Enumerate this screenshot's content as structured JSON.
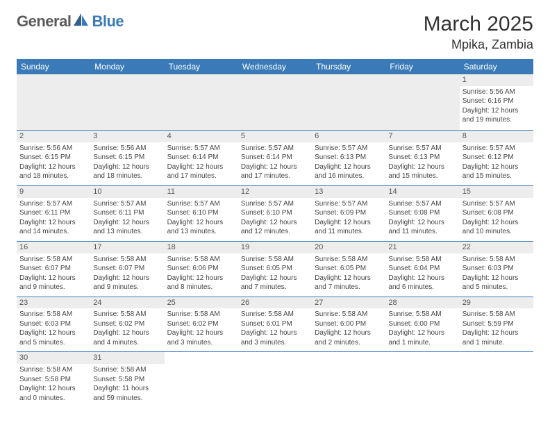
{
  "logo": {
    "part1": "General",
    "part2": "Blue"
  },
  "title": "March 2025",
  "subtitle": "Mpika, Zambia",
  "colors": {
    "header_bg": "#3a7ab8",
    "header_text": "#ffffff",
    "grid_line": "#3a7ab8",
    "daynum_bg": "#ededed",
    "body_text": "#444444",
    "logo_gray": "#5a5a5a",
    "logo_blue": "#3a7ab8",
    "page_bg": "#ffffff"
  },
  "typography": {
    "title_fontsize": 30,
    "subtitle_fontsize": 18,
    "header_fontsize": 12,
    "cell_fontsize": 10,
    "daynum_fontsize": 11,
    "font_family": "Arial"
  },
  "weekdays": [
    "Sunday",
    "Monday",
    "Tuesday",
    "Wednesday",
    "Thursday",
    "Friday",
    "Saturday"
  ],
  "weeks": [
    [
      null,
      null,
      null,
      null,
      null,
      null,
      {
        "n": "1",
        "sr": "Sunrise: 5:56 AM",
        "ss": "Sunset: 6:16 PM",
        "d1": "Daylight: 12 hours",
        "d2": "and 19 minutes."
      }
    ],
    [
      {
        "n": "2",
        "sr": "Sunrise: 5:56 AM",
        "ss": "Sunset: 6:15 PM",
        "d1": "Daylight: 12 hours",
        "d2": "and 18 minutes."
      },
      {
        "n": "3",
        "sr": "Sunrise: 5:56 AM",
        "ss": "Sunset: 6:15 PM",
        "d1": "Daylight: 12 hours",
        "d2": "and 18 minutes."
      },
      {
        "n": "4",
        "sr": "Sunrise: 5:57 AM",
        "ss": "Sunset: 6:14 PM",
        "d1": "Daylight: 12 hours",
        "d2": "and 17 minutes."
      },
      {
        "n": "5",
        "sr": "Sunrise: 5:57 AM",
        "ss": "Sunset: 6:14 PM",
        "d1": "Daylight: 12 hours",
        "d2": "and 17 minutes."
      },
      {
        "n": "6",
        "sr": "Sunrise: 5:57 AM",
        "ss": "Sunset: 6:13 PM",
        "d1": "Daylight: 12 hours",
        "d2": "and 16 minutes."
      },
      {
        "n": "7",
        "sr": "Sunrise: 5:57 AM",
        "ss": "Sunset: 6:13 PM",
        "d1": "Daylight: 12 hours",
        "d2": "and 15 minutes."
      },
      {
        "n": "8",
        "sr": "Sunrise: 5:57 AM",
        "ss": "Sunset: 6:12 PM",
        "d1": "Daylight: 12 hours",
        "d2": "and 15 minutes."
      }
    ],
    [
      {
        "n": "9",
        "sr": "Sunrise: 5:57 AM",
        "ss": "Sunset: 6:11 PM",
        "d1": "Daylight: 12 hours",
        "d2": "and 14 minutes."
      },
      {
        "n": "10",
        "sr": "Sunrise: 5:57 AM",
        "ss": "Sunset: 6:11 PM",
        "d1": "Daylight: 12 hours",
        "d2": "and 13 minutes."
      },
      {
        "n": "11",
        "sr": "Sunrise: 5:57 AM",
        "ss": "Sunset: 6:10 PM",
        "d1": "Daylight: 12 hours",
        "d2": "and 13 minutes."
      },
      {
        "n": "12",
        "sr": "Sunrise: 5:57 AM",
        "ss": "Sunset: 6:10 PM",
        "d1": "Daylight: 12 hours",
        "d2": "and 12 minutes."
      },
      {
        "n": "13",
        "sr": "Sunrise: 5:57 AM",
        "ss": "Sunset: 6:09 PM",
        "d1": "Daylight: 12 hours",
        "d2": "and 11 minutes."
      },
      {
        "n": "14",
        "sr": "Sunrise: 5:57 AM",
        "ss": "Sunset: 6:08 PM",
        "d1": "Daylight: 12 hours",
        "d2": "and 11 minutes."
      },
      {
        "n": "15",
        "sr": "Sunrise: 5:57 AM",
        "ss": "Sunset: 6:08 PM",
        "d1": "Daylight: 12 hours",
        "d2": "and 10 minutes."
      }
    ],
    [
      {
        "n": "16",
        "sr": "Sunrise: 5:58 AM",
        "ss": "Sunset: 6:07 PM",
        "d1": "Daylight: 12 hours",
        "d2": "and 9 minutes."
      },
      {
        "n": "17",
        "sr": "Sunrise: 5:58 AM",
        "ss": "Sunset: 6:07 PM",
        "d1": "Daylight: 12 hours",
        "d2": "and 9 minutes."
      },
      {
        "n": "18",
        "sr": "Sunrise: 5:58 AM",
        "ss": "Sunset: 6:06 PM",
        "d1": "Daylight: 12 hours",
        "d2": "and 8 minutes."
      },
      {
        "n": "19",
        "sr": "Sunrise: 5:58 AM",
        "ss": "Sunset: 6:05 PM",
        "d1": "Daylight: 12 hours",
        "d2": "and 7 minutes."
      },
      {
        "n": "20",
        "sr": "Sunrise: 5:58 AM",
        "ss": "Sunset: 6:05 PM",
        "d1": "Daylight: 12 hours",
        "d2": "and 7 minutes."
      },
      {
        "n": "21",
        "sr": "Sunrise: 5:58 AM",
        "ss": "Sunset: 6:04 PM",
        "d1": "Daylight: 12 hours",
        "d2": "and 6 minutes."
      },
      {
        "n": "22",
        "sr": "Sunrise: 5:58 AM",
        "ss": "Sunset: 6:03 PM",
        "d1": "Daylight: 12 hours",
        "d2": "and 5 minutes."
      }
    ],
    [
      {
        "n": "23",
        "sr": "Sunrise: 5:58 AM",
        "ss": "Sunset: 6:03 PM",
        "d1": "Daylight: 12 hours",
        "d2": "and 5 minutes."
      },
      {
        "n": "24",
        "sr": "Sunrise: 5:58 AM",
        "ss": "Sunset: 6:02 PM",
        "d1": "Daylight: 12 hours",
        "d2": "and 4 minutes."
      },
      {
        "n": "25",
        "sr": "Sunrise: 5:58 AM",
        "ss": "Sunset: 6:02 PM",
        "d1": "Daylight: 12 hours",
        "d2": "and 3 minutes."
      },
      {
        "n": "26",
        "sr": "Sunrise: 5:58 AM",
        "ss": "Sunset: 6:01 PM",
        "d1": "Daylight: 12 hours",
        "d2": "and 3 minutes."
      },
      {
        "n": "27",
        "sr": "Sunrise: 5:58 AM",
        "ss": "Sunset: 6:00 PM",
        "d1": "Daylight: 12 hours",
        "d2": "and 2 minutes."
      },
      {
        "n": "28",
        "sr": "Sunrise: 5:58 AM",
        "ss": "Sunset: 6:00 PM",
        "d1": "Daylight: 12 hours",
        "d2": "and 1 minute."
      },
      {
        "n": "29",
        "sr": "Sunrise: 5:58 AM",
        "ss": "Sunset: 5:59 PM",
        "d1": "Daylight: 12 hours",
        "d2": "and 1 minute."
      }
    ],
    [
      {
        "n": "30",
        "sr": "Sunrise: 5:58 AM",
        "ss": "Sunset: 5:58 PM",
        "d1": "Daylight: 12 hours",
        "d2": "and 0 minutes."
      },
      {
        "n": "31",
        "sr": "Sunrise: 5:58 AM",
        "ss": "Sunset: 5:58 PM",
        "d1": "Daylight: 11 hours",
        "d2": "and 59 minutes."
      },
      null,
      null,
      null,
      null,
      null
    ]
  ]
}
